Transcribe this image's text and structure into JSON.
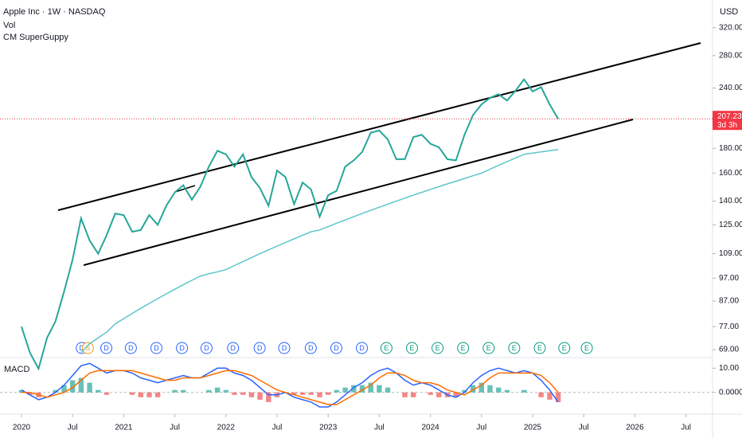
{
  "chart_data": [
    {
      "type": "line",
      "title": "Apple Inc · 1W · NASDAQ",
      "indicators": [
        "Vol",
        "CM SuperGuppy"
      ],
      "currency": "USD",
      "log_scale": true,
      "grid": false,
      "x": [
        2020.0,
        2020.083,
        2020.167,
        2020.25,
        2020.333,
        2020.417,
        2020.5,
        2020.583,
        2020.667,
        2020.75,
        2020.833,
        2020.917,
        2021.0,
        2021.083,
        2021.167,
        2021.25,
        2021.333,
        2021.417,
        2021.5,
        2021.583,
        2021.667,
        2021.75,
        2021.833,
        2021.917,
        2022.0,
        2022.083,
        2022.167,
        2022.25,
        2022.333,
        2022.417,
        2022.5,
        2022.583,
        2022.667,
        2022.75,
        2022.833,
        2022.917,
        2023.0,
        2023.083,
        2023.167,
        2023.25,
        2023.333,
        2023.417,
        2023.5,
        2023.583,
        2023.667,
        2023.75,
        2023.833,
        2023.917,
        2024.0,
        2024.083,
        2024.167,
        2024.25,
        2024.333,
        2024.417,
        2024.5,
        2024.583,
        2024.667,
        2024.75,
        2024.833,
        2024.917,
        2025.0,
        2025.083,
        2025.167,
        2025.25
      ],
      "series": [
        {
          "color": "#26a69a",
          "values": [
            77,
            68,
            63,
            73,
            79,
            91,
            106,
            129,
            116,
            109,
            119,
            132,
            131,
            121,
            122,
            131,
            125,
            137,
            146,
            151,
            141,
            150,
            165,
            178,
            175,
            165,
            175,
            157,
            149,
            137,
            162,
            157,
            138,
            153,
            148,
            130,
            144,
            147,
            165,
            170,
            177,
            194,
            196,
            188,
            171,
            171,
            190,
            192,
            184,
            181,
            171,
            170,
            192,
            211,
            222,
            229,
            233,
            226,
            237,
            250,
            236,
            241,
            222,
            207.23
          ]
        },
        {
          "color": "#5cc6cc",
          "values": [
            null,
            null,
            null,
            null,
            null,
            null,
            null,
            68,
            71,
            73,
            75,
            78,
            80,
            82,
            84,
            86,
            88,
            90,
            92,
            94,
            96,
            98,
            99,
            100,
            101,
            103,
            105,
            107,
            109,
            111,
            113,
            115,
            117,
            119,
            121,
            122,
            124,
            126,
            128,
            130,
            132,
            134,
            136,
            138,
            140,
            142,
            144,
            146,
            148,
            150,
            152,
            154,
            156,
            158,
            160,
            163,
            166,
            169,
            172,
            175,
            176,
            177,
            178,
            179
          ]
        }
      ],
      "last_price": 207.23,
      "countdown": "3d 3h",
      "xlim": [
        2019.79,
        2026.76
      ],
      "ylim": [
        66.7,
        365
      ],
      "yticks": [
        {
          "value": 69,
          "label": "69.00"
        },
        {
          "value": 77,
          "label": "77.00"
        },
        {
          "value": 87,
          "label": "87.00"
        },
        {
          "value": 97,
          "label": "97.00"
        },
        {
          "value": 109,
          "label": "109.00"
        },
        {
          "value": 125,
          "label": "125.00"
        },
        {
          "value": 140,
          "label": "140.00"
        },
        {
          "value": 160,
          "label": "160.00"
        },
        {
          "value": 180,
          "label": "180.00"
        },
        {
          "value": 240,
          "label": "240.00"
        },
        {
          "value": 280,
          "label": "280.00"
        },
        {
          "value": 320,
          "label": "320.00"
        }
      ],
      "xticks": [
        2020,
        {
          "value": 2020.5,
          "label": "Jul"
        },
        2021,
        {
          "value": 2021.5,
          "label": "Jul"
        },
        2022,
        {
          "value": 2022.5,
          "label": "Jul"
        },
        2023,
        {
          "value": 2023.5,
          "label": "Jul"
        },
        2024,
        {
          "value": 2024.5,
          "label": "Jul"
        },
        2025,
        {
          "value": 2025.5,
          "label": "Jul"
        },
        2026,
        {
          "value": 2026.5,
          "label": "Jul"
        }
      ],
      "event_colors": {
        "D": "#2962ff",
        "S": "#ff9800",
        "E": "#089981"
      },
      "events": [
        {
          "x": 2020.59,
          "label": "D"
        },
        {
          "x": 2020.65,
          "label": "S"
        },
        {
          "x": 2020.83,
          "label": "D"
        },
        {
          "x": 2021.07,
          "label": "D"
        },
        {
          "x": 2021.32,
          "label": "D"
        },
        {
          "x": 2021.57,
          "label": "D"
        },
        {
          "x": 2021.81,
          "label": "D"
        },
        {
          "x": 2022.07,
          "label": "D"
        },
        {
          "x": 2022.33,
          "label": "D"
        },
        {
          "x": 2022.57,
          "label": "D"
        },
        {
          "x": 2022.83,
          "label": "D"
        },
        {
          "x": 2023.08,
          "label": "D"
        },
        {
          "x": 2023.33,
          "label": "D"
        },
        {
          "x": 2023.57,
          "label": "E"
        },
        {
          "x": 2023.82,
          "label": "E"
        },
        {
          "x": 2024.07,
          "label": "E"
        },
        {
          "x": 2024.32,
          "label": "E"
        },
        {
          "x": 2024.57,
          "label": "E"
        },
        {
          "x": 2024.82,
          "label": "E"
        },
        {
          "x": 2025.07,
          "label": "E"
        },
        {
          "x": 2025.31,
          "label": "E"
        },
        {
          "x": 2025.53,
          "label": "E"
        }
      ]
    },
    {
      "type": "line",
      "title": "MACD",
      "x": [
        2020.0,
        2020.083,
        2020.167,
        2020.25,
        2020.333,
        2020.417,
        2020.5,
        2020.583,
        2020.667,
        2020.75,
        2020.833,
        2020.917,
        2021.0,
        2021.083,
        2021.167,
        2021.25,
        2021.333,
        2021.417,
        2021.5,
        2021.583,
        2021.667,
        2021.75,
        2021.833,
        2021.917,
        2022.0,
        2022.083,
        2022.167,
        2022.25,
        2022.333,
        2022.417,
        2022.5,
        2022.583,
        2022.667,
        2022.75,
        2022.833,
        2022.917,
        2023.0,
        2023.083,
        2023.167,
        2023.25,
        2023.333,
        2023.417,
        2023.5,
        2023.583,
        2023.667,
        2023.75,
        2023.833,
        2023.917,
        2024.0,
        2024.083,
        2024.167,
        2024.25,
        2024.333,
        2024.417,
        2024.5,
        2024.583,
        2024.667,
        2024.75,
        2024.833,
        2024.917,
        2025.0,
        2025.083,
        2025.167,
        2025.25
      ],
      "series": [
        {
          "color": "#2962ff",
          "values": [
            1,
            -1,
            -3,
            -2,
            0,
            3,
            7,
            11,
            12,
            10,
            8,
            9,
            9,
            8,
            6,
            5,
            4,
            5,
            6,
            7,
            6,
            6,
            8,
            10,
            10,
            8,
            7,
            5,
            2,
            -1,
            -1,
            0,
            -2,
            -3,
            -4,
            -6,
            -6,
            -4,
            -1,
            2,
            4,
            7,
            9,
            10,
            8,
            5,
            3,
            4,
            3,
            1,
            -1,
            -2,
            0,
            4,
            7,
            9,
            10,
            9,
            8,
            9,
            8,
            5,
            1,
            -4
          ]
        },
        {
          "color": "#ff6d00",
          "values": [
            0,
            0,
            -1,
            -2,
            -1,
            0,
            2,
            5,
            8,
            9,
            9,
            9,
            9,
            9,
            8,
            7,
            6,
            5,
            5,
            6,
            6,
            6,
            7,
            8,
            9,
            9,
            8,
            7,
            5,
            3,
            1,
            0,
            -1,
            -2,
            -3,
            -4,
            -5,
            -5,
            -3,
            -1,
            1,
            3,
            6,
            8,
            8,
            7,
            5,
            4,
            4,
            3,
            1,
            0,
            -1,
            1,
            3,
            6,
            8,
            8,
            8,
            8,
            8,
            7,
            4,
            0
          ]
        }
      ],
      "histogram": {
        "up_color": "#26a69a",
        "down_color": "#ef5350",
        "values": [
          1,
          -1,
          -2,
          0,
          1,
          3,
          5,
          6,
          4,
          1,
          -1,
          0,
          0,
          -1,
          -2,
          -2,
          -2,
          0,
          1,
          1,
          0,
          0,
          1,
          2,
          1,
          -1,
          -1,
          -2,
          -3,
          -4,
          -2,
          0,
          -1,
          -1,
          -1,
          -2,
          -1,
          1,
          2,
          3,
          3,
          4,
          3,
          2,
          0,
          -2,
          -2,
          0,
          -1,
          -2,
          -2,
          -2,
          1,
          3,
          4,
          3,
          2,
          1,
          0,
          1,
          0,
          -2,
          -3,
          -4
        ]
      },
      "ylim": [
        -8.3,
        13.4
      ],
      "yticks": [
        {
          "value": 10,
          "label": "10.00"
        },
        {
          "value": 0,
          "label": "0.0000"
        }
      ]
    }
  ]
}
